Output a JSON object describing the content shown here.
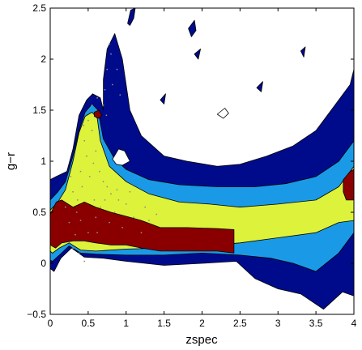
{
  "chart_data": {
    "type": "contour",
    "title": "",
    "xlabel": "zspec",
    "ylabel": "g−r",
    "xlim": [
      0,
      4
    ],
    "ylim": [
      -0.5,
      2.5
    ],
    "xticks": [
      0,
      0.5,
      1,
      1.5,
      2,
      2.5,
      3,
      3.5,
      4
    ],
    "xtick_labels": [
      "0",
      "0.5",
      "1",
      "1.5",
      "2",
      "2.5",
      "3",
      "3.5",
      "4"
    ],
    "yticks": [
      -0.5,
      0,
      0.5,
      1,
      1.5,
      2,
      2.5
    ],
    "ytick_labels": [
      "−0.5",
      "0",
      "0.5",
      "1",
      "1.5",
      "2",
      "2.5"
    ],
    "grid": false,
    "legend": "none",
    "levels": [
      {
        "name": "",
        "color": "#000b8c",
        "points": [
          [
            0,
            0.82
          ],
          [
            0.08,
            0.85
          ],
          [
            0.22,
            0.9
          ],
          [
            0.3,
            1.12
          ],
          [
            0.38,
            1.45
          ],
          [
            0.48,
            1.6
          ],
          [
            0.56,
            1.66
          ],
          [
            0.66,
            1.62
          ],
          [
            0.7,
            1.5
          ],
          [
            0.7,
            1.8
          ],
          [
            0.75,
            2.1
          ],
          [
            0.85,
            2.25
          ],
          [
            0.95,
            2.0
          ],
          [
            1.05,
            1.5
          ],
          [
            1.2,
            1.25
          ],
          [
            1.5,
            1.05
          ],
          [
            1.8,
            1.0
          ],
          [
            2.2,
            0.95
          ],
          [
            2.5,
            0.97
          ],
          [
            2.85,
            1.05
          ],
          [
            3.2,
            1.15
          ],
          [
            3.5,
            1.3
          ],
          [
            3.75,
            1.55
          ],
          [
            3.95,
            1.75
          ],
          [
            4,
            1.9
          ],
          [
            4,
            -0.32
          ],
          [
            3.85,
            -0.28
          ],
          [
            3.6,
            -0.45
          ],
          [
            3.3,
            -0.3
          ],
          [
            3.0,
            -0.25
          ],
          [
            2.7,
            -0.15
          ],
          [
            2.45,
            0.02
          ],
          [
            2.0,
            0.0
          ],
          [
            1.5,
            -0.02
          ],
          [
            1.0,
            0.02
          ],
          [
            0.7,
            0.05
          ],
          [
            0.45,
            0.06
          ],
          [
            0.28,
            0.15
          ],
          [
            0.14,
            0.05
          ],
          [
            0.05,
            -0.08
          ],
          [
            0,
            -0.05
          ]
        ]
      },
      {
        "name": "",
        "color": "#1a9ae6",
        "points": [
          [
            0,
            0.62
          ],
          [
            0.1,
            0.7
          ],
          [
            0.2,
            0.8
          ],
          [
            0.3,
            1.05
          ],
          [
            0.38,
            1.3
          ],
          [
            0.46,
            1.48
          ],
          [
            0.55,
            1.56
          ],
          [
            0.63,
            1.5
          ],
          [
            0.7,
            1.22
          ],
          [
            0.85,
            1.02
          ],
          [
            1.0,
            0.92
          ],
          [
            1.3,
            0.82
          ],
          [
            1.7,
            0.77
          ],
          [
            2.2,
            0.75
          ],
          [
            2.7,
            0.75
          ],
          [
            3.1,
            0.78
          ],
          [
            3.5,
            0.85
          ],
          [
            3.8,
            1.0
          ],
          [
            4,
            1.2
          ],
          [
            4,
            0.3
          ],
          [
            3.8,
            0.1
          ],
          [
            3.5,
            -0.08
          ],
          [
            3.2,
            0.0
          ],
          [
            2.9,
            0.05
          ],
          [
            2.5,
            0.08
          ],
          [
            2.0,
            0.1
          ],
          [
            1.5,
            0.08
          ],
          [
            1.0,
            0.08
          ],
          [
            0.6,
            0.09
          ],
          [
            0.4,
            0.1
          ],
          [
            0.25,
            0.17
          ],
          [
            0.12,
            0.08
          ],
          [
            0.03,
            0.02
          ],
          [
            0,
            0.03
          ]
        ]
      },
      {
        "name": "",
        "color": "#ddf23a",
        "points": [
          [
            0,
            0.52
          ],
          [
            0.1,
            0.6
          ],
          [
            0.2,
            0.72
          ],
          [
            0.3,
            1.0
          ],
          [
            0.38,
            1.28
          ],
          [
            0.46,
            1.44
          ],
          [
            0.55,
            1.48
          ],
          [
            0.62,
            1.42
          ],
          [
            0.66,
            1.2
          ],
          [
            0.78,
            0.95
          ],
          [
            1.0,
            0.8
          ],
          [
            1.3,
            0.68
          ],
          [
            1.7,
            0.6
          ],
          [
            2.1,
            0.58
          ],
          [
            2.5,
            0.55
          ],
          [
            3.0,
            0.58
          ],
          [
            3.5,
            0.62
          ],
          [
            3.8,
            0.75
          ],
          [
            4,
            0.95
          ],
          [
            4,
            0.42
          ],
          [
            3.8,
            0.4
          ],
          [
            3.5,
            0.3
          ],
          [
            3.0,
            0.25
          ],
          [
            2.5,
            0.2
          ],
          [
            2.0,
            0.17
          ],
          [
            1.5,
            0.15
          ],
          [
            1.0,
            0.14
          ],
          [
            0.6,
            0.12
          ],
          [
            0.4,
            0.13
          ],
          [
            0.25,
            0.2
          ],
          [
            0.12,
            0.15
          ],
          [
            0.03,
            0.1
          ],
          [
            0,
            0.12
          ]
        ]
      },
      {
        "name": "",
        "color": "#8a0000",
        "points": [
          [
            0,
            0.48
          ],
          [
            0.08,
            0.6
          ],
          [
            0.15,
            0.62
          ],
          [
            0.3,
            0.55
          ],
          [
            0.45,
            0.6
          ],
          [
            0.6,
            0.55
          ],
          [
            0.8,
            0.5
          ],
          [
            1.0,
            0.46
          ],
          [
            1.2,
            0.42
          ],
          [
            1.45,
            0.35
          ],
          [
            1.8,
            0.35
          ],
          [
            2.2,
            0.34
          ],
          [
            2.42,
            0.33
          ],
          [
            2.42,
            0.1
          ],
          [
            2.2,
            0.12
          ],
          [
            1.8,
            0.12
          ],
          [
            1.45,
            0.12
          ],
          [
            1.2,
            0.15
          ],
          [
            1.0,
            0.18
          ],
          [
            0.8,
            0.18
          ],
          [
            0.6,
            0.2
          ],
          [
            0.45,
            0.22
          ],
          [
            0.3,
            0.22
          ],
          [
            0.15,
            0.2
          ],
          [
            0.07,
            0.15
          ],
          [
            0,
            0.18
          ]
        ]
      },
      {
        "name": "",
        "color": "#8a0000",
        "points": [
          [
            0.58,
            1.48
          ],
          [
            0.64,
            1.5
          ],
          [
            0.68,
            1.45
          ],
          [
            0.64,
            1.42
          ],
          [
            0.58,
            1.44
          ]
        ]
      },
      {
        "name": "",
        "color": "#8a0000",
        "points": [
          [
            3.86,
            0.82
          ],
          [
            3.95,
            0.9
          ],
          [
            4,
            0.92
          ],
          [
            4,
            0.62
          ],
          [
            3.9,
            0.62
          ],
          [
            3.86,
            0.7
          ]
        ]
      }
    ],
    "holes": [
      {
        "color": "#ffffff",
        "points": [
          [
            0.82,
            1.02
          ],
          [
            0.9,
            1.12
          ],
          [
            0.98,
            1.1
          ],
          [
            1.05,
            1.0
          ],
          [
            0.95,
            0.96
          ],
          [
            0.87,
            0.97
          ]
        ]
      },
      {
        "color": "#ffffff",
        "points": [
          [
            2.2,
            1.46
          ],
          [
            2.3,
            1.52
          ],
          [
            2.35,
            1.47
          ],
          [
            2.28,
            1.42
          ]
        ]
      }
    ],
    "islands": [
      {
        "color": "#000b8c",
        "points": [
          [
            1.02,
            2.35
          ],
          [
            1.06,
            2.48
          ],
          [
            1.12,
            2.5
          ],
          [
            1.1,
            2.4
          ],
          [
            1.05,
            2.33
          ]
        ]
      },
      {
        "color": "#000b8c",
        "points": [
          [
            1.82,
            2.3
          ],
          [
            1.9,
            2.38
          ],
          [
            1.92,
            2.28
          ],
          [
            1.86,
            2.22
          ]
        ]
      },
      {
        "color": "#000b8c",
        "points": [
          [
            1.9,
            2.05
          ],
          [
            1.98,
            2.1
          ],
          [
            1.95,
            2.0
          ]
        ]
      },
      {
        "color": "#000b8c",
        "points": [
          [
            1.45,
            1.6
          ],
          [
            1.52,
            1.66
          ],
          [
            1.5,
            1.56
          ]
        ]
      },
      {
        "color": "#000b8c",
        "points": [
          [
            2.72,
            1.72
          ],
          [
            2.8,
            1.78
          ],
          [
            2.78,
            1.68
          ]
        ]
      },
      {
        "color": "#000b8c",
        "points": [
          [
            3.3,
            2.08
          ],
          [
            3.36,
            2.12
          ],
          [
            3.34,
            2.02
          ]
        ]
      }
    ],
    "series": [
      {
        "name": "",
        "type": "scatter",
        "color": "#8c8c8c",
        "points": [
          [
            0.3,
            0.15
          ],
          [
            0.35,
            0.5
          ],
          [
            0.4,
            0.9
          ],
          [
            0.45,
            1.2
          ],
          [
            0.5,
            1.4
          ],
          [
            0.55,
            1.3
          ],
          [
            0.6,
            1.1
          ],
          [
            0.65,
            0.9
          ],
          [
            0.7,
            0.8
          ],
          [
            0.75,
            0.75
          ],
          [
            0.8,
            0.68
          ],
          [
            0.9,
            0.62
          ],
          [
            1.0,
            0.58
          ],
          [
            0.2,
            0.55
          ],
          [
            0.25,
            0.4
          ],
          [
            0.5,
            0.3
          ],
          [
            0.6,
            0.45
          ],
          [
            0.7,
            1.55
          ],
          [
            0.72,
            1.7
          ],
          [
            0.75,
            1.9
          ],
          [
            0.8,
            2.05
          ],
          [
            0.65,
            1.35
          ],
          [
            0.55,
            1.55
          ],
          [
            0.48,
            1.05
          ],
          [
            0.42,
            0.75
          ],
          [
            0.58,
            0.62
          ],
          [
            0.85,
            0.5
          ],
          [
            1.1,
            0.45
          ],
          [
            1.3,
            0.42
          ],
          [
            0.33,
            0.28
          ],
          [
            0.38,
            0.1
          ],
          [
            0.45,
            0.02
          ],
          [
            0.62,
            0.3
          ],
          [
            0.78,
            0.4
          ],
          [
            0.95,
            0.35
          ],
          [
            1.2,
            0.3
          ],
          [
            0.52,
            0.85
          ],
          [
            0.57,
            0.98
          ],
          [
            0.68,
            1.2
          ],
          [
            0.74,
            1.45
          ],
          [
            0.82,
            1.75
          ],
          [
            0.78,
            2.15
          ],
          [
            0.88,
            1.9
          ],
          [
            0.92,
            1.65
          ],
          [
            0.3,
            0.7
          ],
          [
            0.27,
            0.85
          ],
          [
            0.44,
            1.35
          ],
          [
            0.5,
            1.5
          ],
          [
            0.62,
            1.62
          ],
          [
            0.4,
            0.42
          ],
          [
            0.36,
            0.62
          ],
          [
            0.66,
            0.55
          ],
          [
            0.72,
            0.62
          ],
          [
            0.88,
            0.72
          ],
          [
            1.05,
            0.7
          ],
          [
            1.25,
            0.55
          ],
          [
            1.4,
            0.48
          ]
        ]
      }
    ]
  }
}
